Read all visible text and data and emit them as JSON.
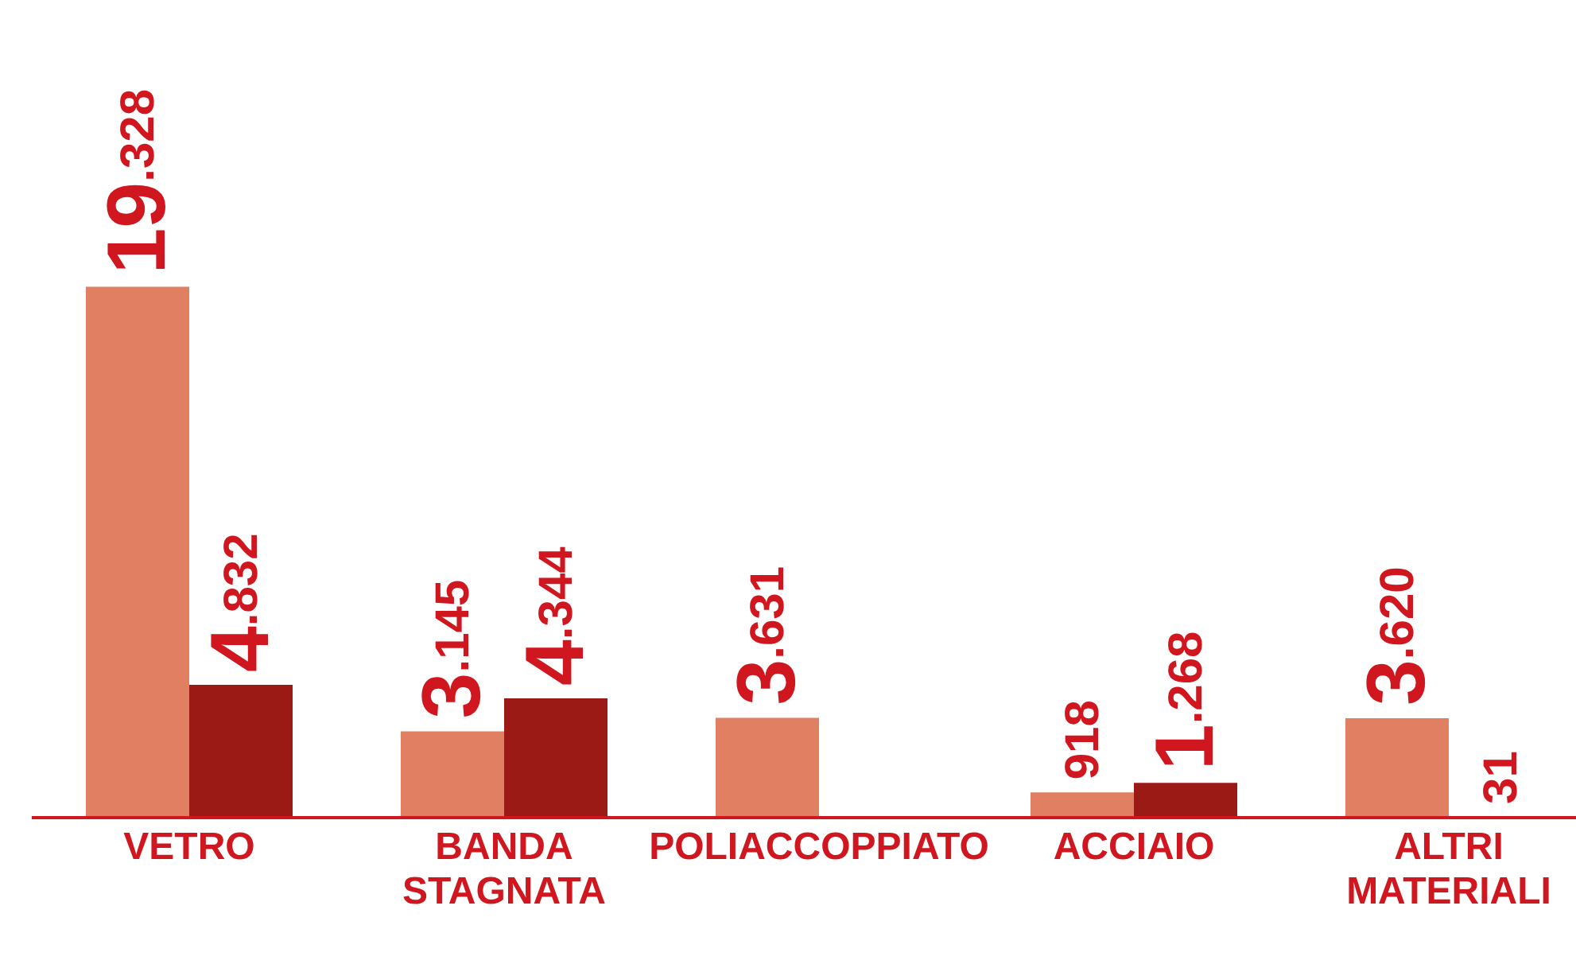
{
  "chart_data": {
    "type": "bar",
    "categories": [
      "VETRO",
      "BANDA STAGNATA",
      "POLIACCOPPIATO",
      "ACCIAIO",
      "ALTRI MATERIALI"
    ],
    "series": [
      {
        "color": "#e07f62",
        "values": [
          19328,
          3145,
          3631,
          918,
          3620
        ],
        "value_labels": [
          "19.328",
          "3.145",
          "3.631",
          "918",
          "3.620"
        ]
      },
      {
        "color": "#9b1a16",
        "values": [
          4832,
          4344,
          null,
          1268,
          31
        ],
        "value_labels": [
          "4.832",
          "4.344",
          null,
          "1.268",
          "31"
        ]
      }
    ],
    "legend": false,
    "grid": false
  }
}
